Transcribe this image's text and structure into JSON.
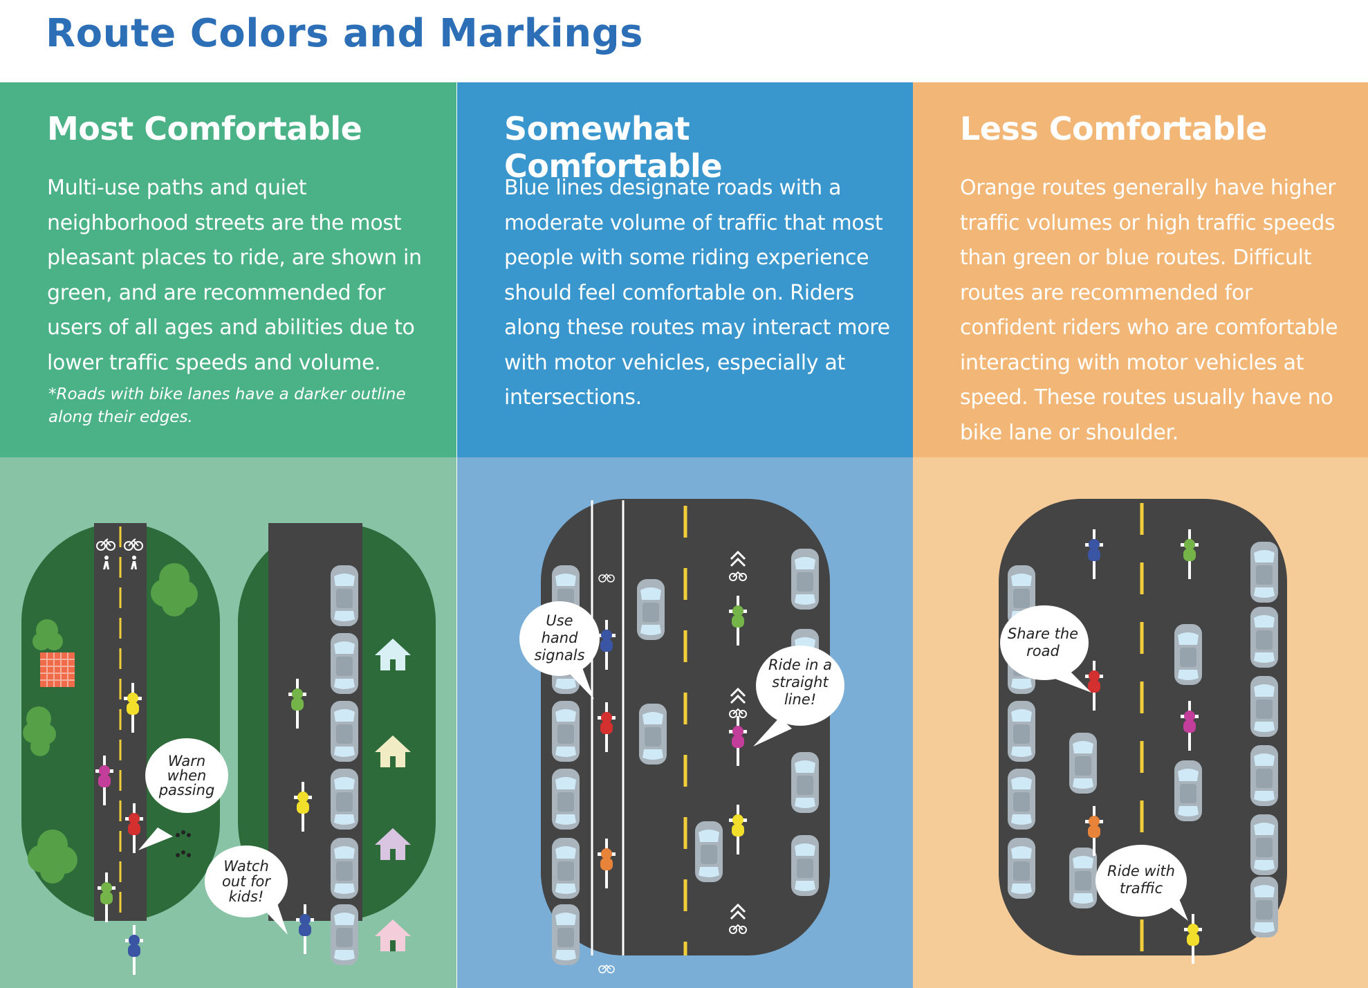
{
  "page": {
    "title": "Route Colors and Markings"
  },
  "colors": {
    "title": "#2c6fb7",
    "green_header": "#4bb187",
    "green_lower": "#88c3a5",
    "park_green": "#2e6b3a",
    "blue_header": "#3a97cd",
    "blue_lower": "#7aaed6",
    "orange_header": "#f2b776",
    "orange_lower": "#f5cb98",
    "road": "#444444",
    "lane_line": "#f2cf3a",
    "car": "#a9b4bc"
  },
  "panels": {
    "green": {
      "title": "Most Comfortable",
      "body": "Multi-use paths and quiet neighborhood streets are the most pleasant places to ride, are shown in green, and are recommended for users of all ages and abilities due to lower traffic speeds and volume.",
      "note": "*Roads with bike lanes have a darker outline along their edges.",
      "bubbles": {
        "warn": [
          "Warn",
          "when",
          "passing"
        ],
        "kids": [
          "Watch",
          "out for",
          "kids!"
        ]
      }
    },
    "blue": {
      "title": "Somewhat Comfortable",
      "body": "Blue lines designate roads with a moderate volume of traffic that most people with some riding experience should feel comfortable on. Riders along these routes may interact more with motor vehicles, especially at intersections.",
      "bubbles": {
        "signals": [
          "Use",
          "hand",
          "signals"
        ],
        "straight": [
          "Ride in a",
          "straight",
          "line!"
        ]
      }
    },
    "orange": {
      "title": "Less Comfortable",
      "body": "Orange routes generally have higher traffic volumes or high traffic speeds than green or blue routes. Difficult routes are recommended for confident riders who are comfortable interacting with motor vehicles at speed.  These routes usually have no bike lane or shoulder.",
      "bubbles": {
        "share": [
          "Share the",
          "road"
        ],
        "ride_with": [
          "Ride with",
          "traffic"
        ]
      }
    }
  },
  "icons": {
    "bike": "bicycle-icon",
    "pedestrian": "pedestrian-icon",
    "sharrow": "sharrow-chevron-icon",
    "house": "house-icon",
    "tree": "tree-icon",
    "blanket": "picnic-blanket-icon",
    "ball": "soccer-ball-icon",
    "paw": "paw-prints-icon"
  }
}
